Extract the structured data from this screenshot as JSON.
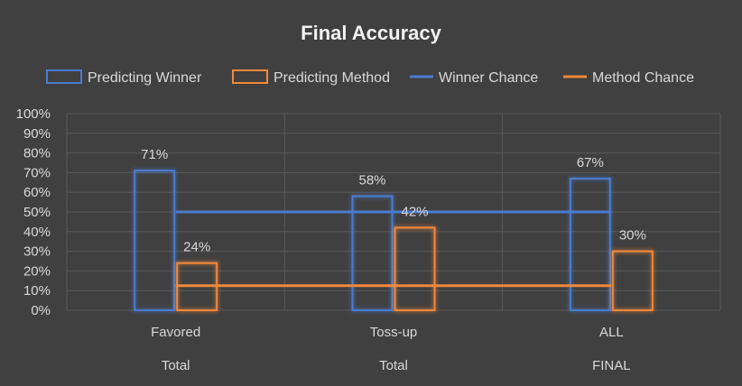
{
  "chart_data": {
    "type": "bar",
    "title": "Final Accuracy",
    "categories": [
      {
        "label": "Favored",
        "group": "Total"
      },
      {
        "label": "Toss-up",
        "group": "Total"
      },
      {
        "label": "ALL",
        "group": "FINAL"
      }
    ],
    "series": [
      {
        "name": "Predicting Winner",
        "kind": "bar",
        "color": "#4a7bd0",
        "values": [
          0.71,
          0.58,
          0.67
        ],
        "labels": [
          "71%",
          "58%",
          "67%"
        ]
      },
      {
        "name": "Predicting Method",
        "kind": "bar",
        "color": "#f0883a",
        "values": [
          0.24,
          0.42,
          0.3
        ],
        "labels": [
          "24%",
          "42%",
          "30%"
        ]
      },
      {
        "name": "Winner Chance",
        "kind": "line",
        "color": "#4a7bd0",
        "values": [
          0.5,
          0.5,
          0.5
        ]
      },
      {
        "name": "Method Chance",
        "kind": "line",
        "color": "#f0883a",
        "values": [
          0.125,
          0.125,
          0.125
        ]
      }
    ],
    "ylim": [
      0,
      1
    ],
    "yticks": [
      "0%",
      "10%",
      "20%",
      "30%",
      "40%",
      "50%",
      "60%",
      "70%",
      "80%",
      "90%",
      "100%"
    ],
    "grid": true,
    "legend_position": "top"
  }
}
